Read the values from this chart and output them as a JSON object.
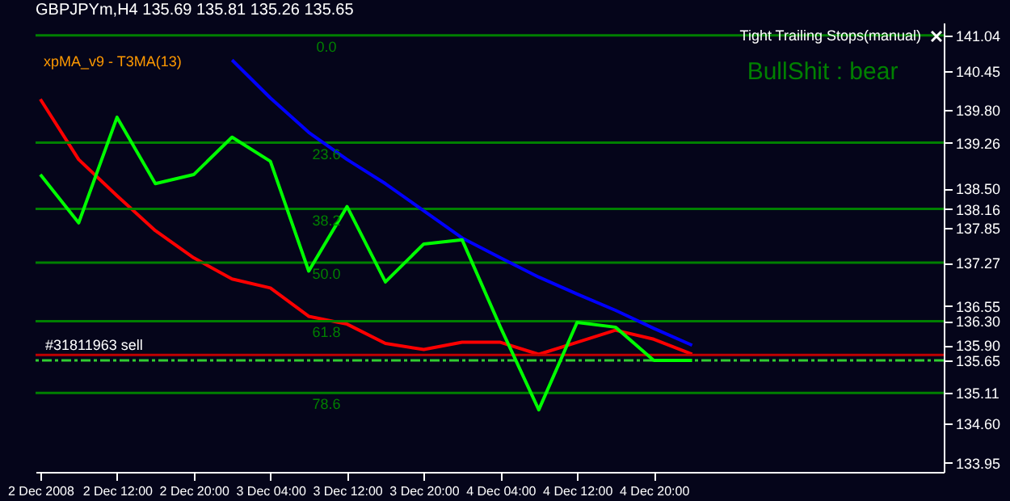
{
  "chart_data": {
    "type": "line",
    "title": "GBPJPYm,H4  135.69 135.81 135.26 135.65",
    "annotations": [
      "xpMA_v9 - T3MA(13)",
      "Tight Trailing Stops(manual)",
      "BullShit : bear",
      "0.0",
      "23.6",
      "38.2",
      "50.0",
      "61.8",
      "78.6"
    ],
    "x": [
      "2008-12-02T04:00",
      "2008-12-02T08:00",
      "2008-12-02T12:00",
      "2008-12-02T16:00",
      "2008-12-02T20:00",
      "2008-12-03T00:00",
      "2008-12-03T04:00",
      "2008-12-03T08:00",
      "2008-12-03T12:00",
      "2008-12-03T16:00",
      "2008-12-03T20:00",
      "2008-12-04T00:00",
      "2008-12-04T04:00",
      "2008-12-04T08:00",
      "2008-12-04T12:00",
      "2008-12-04T16:00",
      "2008-12-04T20:00",
      "2008-12-05T00:00"
    ],
    "series": [
      {
        "color": "#ff0000",
        "values": [
          139.98,
          138.98,
          138.38,
          137.8,
          137.35,
          137.0,
          136.85,
          136.38,
          136.25,
          135.93,
          135.83,
          135.95,
          135.95,
          135.75,
          135.95,
          136.15,
          136.0,
          135.75
        ]
      },
      {
        "color": "#0000ff",
        "values": [
          null,
          null,
          null,
          null,
          null,
          140.63,
          140.0,
          139.43,
          138.98,
          138.58,
          138.13,
          137.68,
          137.35,
          137.03,
          136.75,
          136.48,
          136.18,
          135.9
        ]
      },
      {
        "color": "#00ff00",
        "values": [
          138.73,
          137.93,
          139.68,
          138.58,
          138.73,
          139.35,
          138.95,
          137.13,
          138.2,
          136.95,
          137.58,
          137.65,
          136.2,
          134.83,
          136.28,
          136.2,
          135.65,
          135.65
        ]
      }
    ],
    "xlim": [
      "2008-12-02T03:30",
      "2008-12-06T02:15"
    ],
    "xticks": [
      {
        "value": "2008-12-02T04:00",
        "label": "2 Dec 2008"
      },
      {
        "value": "2008-12-02T12:00",
        "label": "2 Dec 12:00"
      },
      {
        "value": "2008-12-02T20:00",
        "label": "2 Dec 20:00"
      },
      {
        "value": "2008-12-03T04:00",
        "label": "3 Dec 04:00"
      },
      {
        "value": "2008-12-03T12:00",
        "label": "3 Dec 12:00"
      },
      {
        "value": "2008-12-03T20:00",
        "label": "3 Dec 20:00"
      },
      {
        "value": "2008-12-04T04:00",
        "label": "4 Dec 04:00"
      },
      {
        "value": "2008-12-04T12:00",
        "label": "4 Dec 12:00"
      },
      {
        "value": "2008-12-04T20:00",
        "label": "4 Dec 20:00"
      }
    ],
    "ylim": [
      133.8,
      141.25
    ],
    "yticks": [
      141.04,
      140.45,
      {
        "value": 139.8,
        "label": "139.80"
      },
      139.26,
      {
        "value": 138.5,
        "label": "138.50"
      },
      138.16,
      137.85,
      137.27,
      136.55,
      {
        "value": 136.3,
        "label": "136.30"
      },
      {
        "value": 135.9,
        "label": "135.90"
      },
      135.65,
      135.11,
      {
        "value": 134.6,
        "label": "134.60"
      },
      133.95
    ],
    "ref_lines": [
      {
        "axis": "y",
        "value": 141.04,
        "color": "#008000"
      },
      {
        "axis": "y",
        "value": 139.26,
        "color": "#008000"
      },
      {
        "axis": "y",
        "value": 138.16,
        "color": "#008000"
      },
      {
        "axis": "y",
        "value": 137.27,
        "color": "#008000"
      },
      {
        "axis": "y",
        "value": 136.3,
        "color": "#008000"
      },
      {
        "axis": "y",
        "value": 135.11,
        "color": "#008000"
      },
      {
        "axis": "y",
        "value": 135.74,
        "label": "#31811963 sell",
        "color": "#c00000"
      },
      {
        "axis": "y",
        "value": 135.65,
        "color": "#32cd32",
        "line_style": "dashed"
      }
    ],
    "grid": false
  }
}
